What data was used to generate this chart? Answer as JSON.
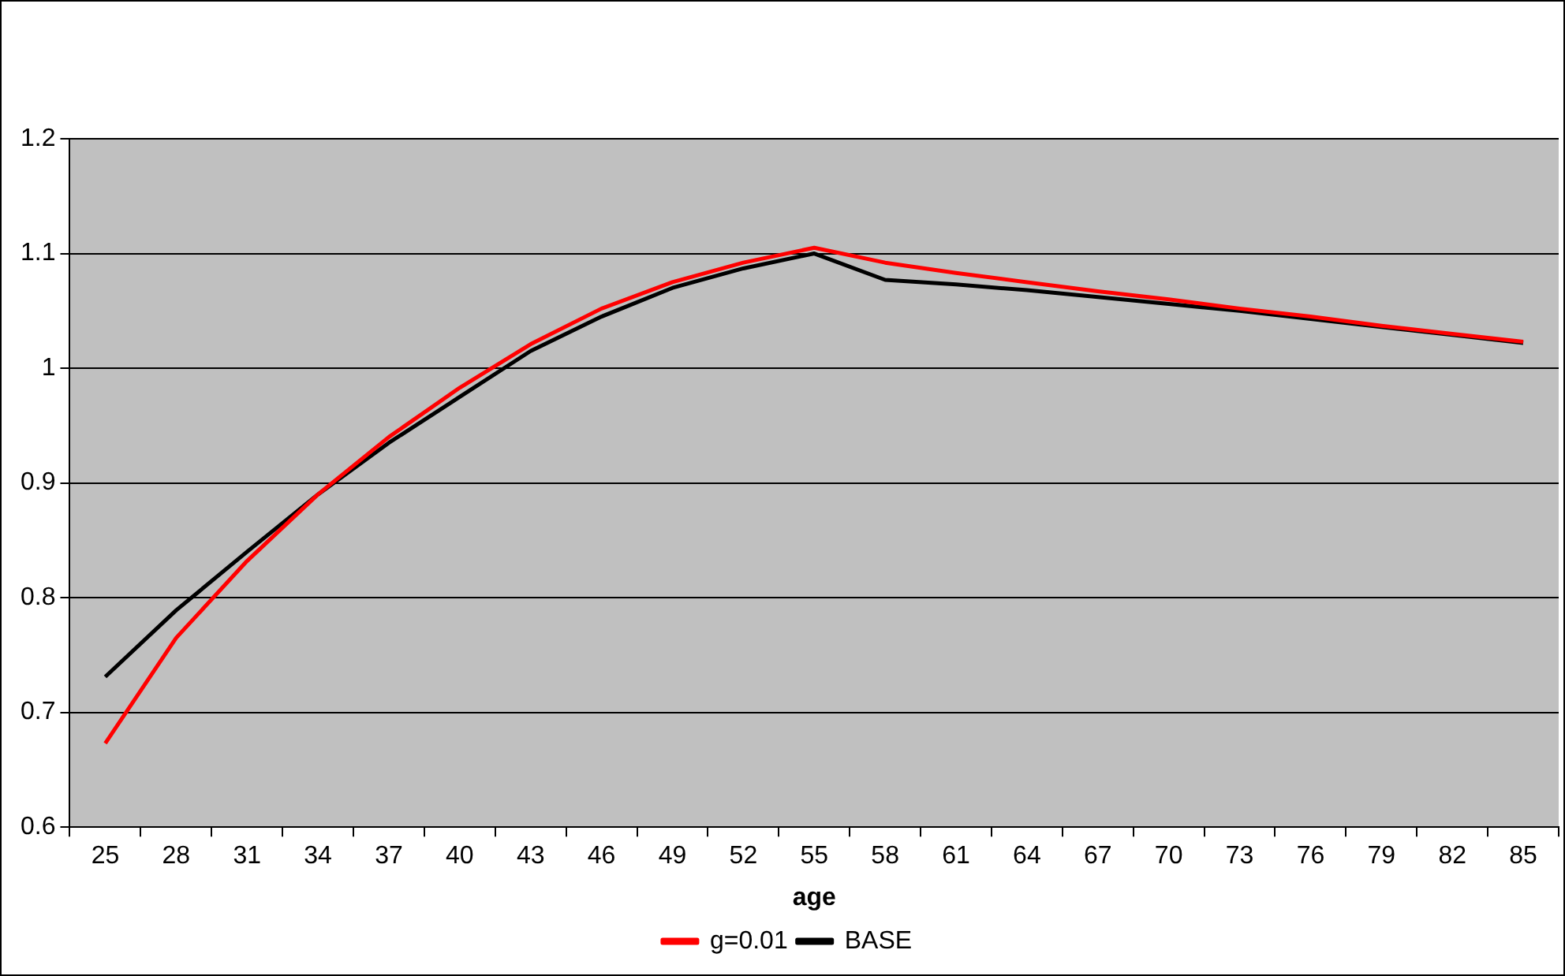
{
  "chart_data": {
    "type": "line",
    "xlabel": "age",
    "categories": [
      "25",
      "28",
      "31",
      "34",
      "37",
      "40",
      "43",
      "46",
      "49",
      "52",
      "55",
      "58",
      "61",
      "64",
      "67",
      "70",
      "73",
      "76",
      "79",
      "82",
      "85"
    ],
    "ylim": [
      0.6,
      1.2
    ],
    "yticks": [
      0.6,
      0.7,
      0.8,
      0.9,
      1,
      1.1,
      1.2
    ],
    "grid": "y",
    "legend": "bottom",
    "marker": "none",
    "series": [
      {
        "name": "g=0.01",
        "color": "#ff0000",
        "values": [
          0.673,
          0.765,
          0.832,
          0.89,
          0.94,
          0.983,
          1.021,
          1.052,
          1.075,
          1.092,
          1.105,
          1.092,
          1.083,
          1.075,
          1.067,
          1.06,
          1.052,
          1.045,
          1.037,
          1.03,
          1.023
        ]
      },
      {
        "name": "BASE",
        "color": "#000000",
        "values": [
          0.731,
          0.789,
          0.84,
          0.89,
          0.935,
          0.975,
          1.015,
          1.045,
          1.07,
          1.087,
          1.1,
          1.077,
          1.073,
          1.068,
          1.062,
          1.056,
          1.05,
          1.043,
          1.036,
          1.029,
          1.022
        ]
      }
    ]
  }
}
